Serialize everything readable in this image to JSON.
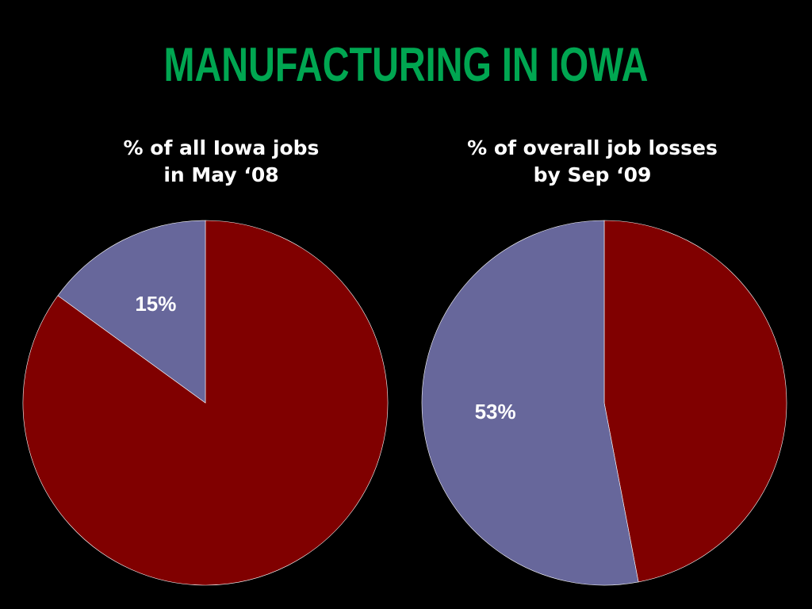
{
  "title": "MANUFACTURING IN IOWA",
  "chart_data": [
    {
      "type": "pie",
      "title": "% of all Iowa jobs\nin May ‘08",
      "values": [
        85,
        15
      ],
      "value_labels": [
        null,
        "15%"
      ],
      "colors": [
        "#800000",
        "#67679b"
      ]
    },
    {
      "type": "pie",
      "title": "% of overall job losses\nby Sep ‘09",
      "values": [
        47,
        53
      ],
      "value_labels": [
        null,
        "53%"
      ],
      "colors": [
        "#800000",
        "#67679b"
      ]
    }
  ]
}
